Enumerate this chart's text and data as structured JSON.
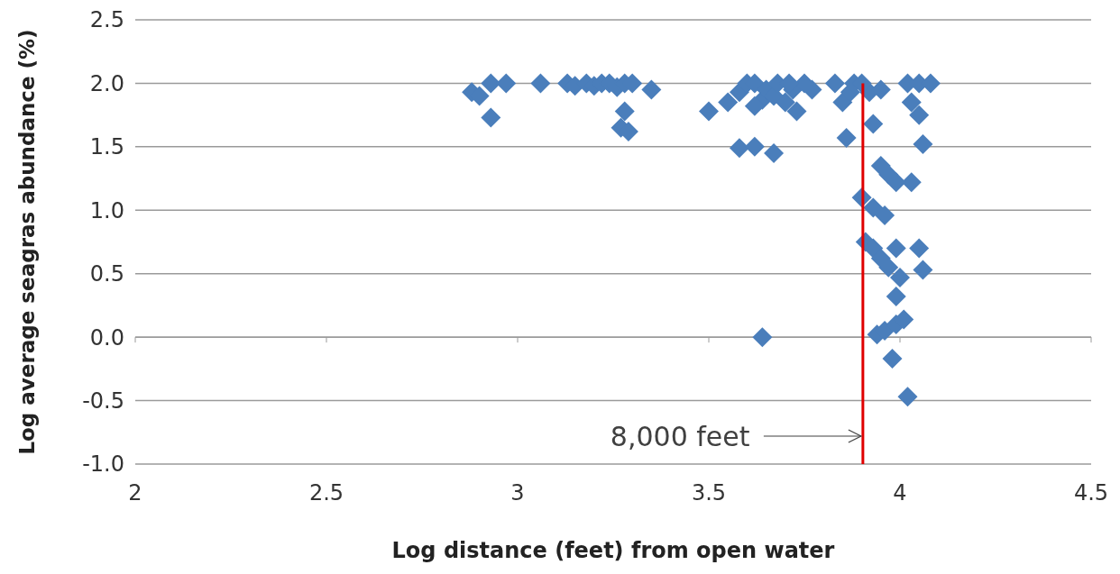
{
  "chart_data": {
    "type": "scatter",
    "xlabel": "Log distance (feet) from open water",
    "ylabel": "Log average seagras abundance (%)",
    "xlim": [
      2,
      4.5
    ],
    "xticks": [
      2,
      2.5,
      3,
      3.5,
      4,
      4.5
    ],
    "ylim": [
      -1,
      2.5
    ],
    "yticks": [
      {
        "value": -1,
        "label": "-1.0"
      },
      {
        "value": -0.5,
        "label": "-0.5"
      },
      {
        "value": 0,
        "label": "0.0"
      },
      {
        "value": 0.5,
        "label": "0.5"
      },
      {
        "value": 1,
        "label": "1.0"
      },
      {
        "value": 1.5,
        "label": "1.5"
      },
      {
        "value": 2,
        "label": "2.0"
      },
      {
        "value": 2.5,
        "label": "2.5"
      }
    ],
    "grid": "y",
    "marker": "diamond",
    "series": [
      {
        "color": "#4a7ebb",
        "x": [
          2.88,
          2.9,
          2.93,
          2.93,
          2.97,
          3.06,
          3.13,
          3.15,
          3.18,
          3.2,
          3.22,
          3.24,
          3.26,
          3.28,
          3.3,
          3.35,
          3.28,
          3.27,
          3.29,
          3.5,
          3.55,
          3.58,
          3.6,
          3.62,
          3.64,
          3.65,
          3.67,
          3.68,
          3.7,
          3.72,
          3.73,
          3.75,
          3.77,
          3.71,
          3.62,
          3.58,
          3.62,
          3.67,
          3.64,
          3.83,
          3.85,
          3.87,
          3.88,
          3.86,
          3.92,
          3.95,
          3.93,
          3.9,
          4.02,
          4.05,
          4.08,
          4.03,
          4.05,
          4.06,
          4.03,
          4.05,
          4.06,
          3.9,
          3.93,
          3.96,
          3.95,
          3.97,
          3.99,
          3.91,
          3.93,
          3.95,
          3.99,
          3.97,
          4.0,
          3.99,
          3.94,
          3.96,
          3.99,
          4.01,
          3.98,
          4.02
        ],
        "values": [
          1.93,
          1.9,
          1.73,
          2.0,
          2.0,
          2.0,
          2.0,
          1.98,
          2.0,
          1.98,
          2.0,
          2.0,
          1.97,
          2.0,
          2.0,
          1.95,
          1.78,
          1.65,
          1.62,
          1.78,
          1.85,
          1.93,
          2.0,
          2.0,
          1.87,
          1.95,
          1.9,
          2.0,
          1.85,
          1.95,
          1.78,
          2.0,
          1.95,
          2.0,
          1.82,
          1.49,
          1.5,
          1.45,
          0.0,
          2.0,
          1.85,
          1.93,
          2.0,
          1.57,
          1.93,
          1.95,
          1.68,
          2.0,
          2.0,
          2.0,
          2.0,
          1.85,
          1.75,
          1.52,
          1.22,
          0.7,
          0.53,
          1.1,
          1.02,
          0.96,
          1.35,
          1.28,
          1.22,
          0.75,
          0.7,
          0.62,
          0.7,
          0.55,
          0.47,
          0.32,
          0.02,
          0.05,
          0.1,
          0.14,
          -0.17,
          -0.47
        ]
      },
      {
        "type": "line",
        "color": "#e00000",
        "marker": "none",
        "x": [
          3.903,
          3.903
        ],
        "values": [
          -1,
          2
        ]
      }
    ],
    "annotations": [
      {
        "text": "8,000 feet",
        "x": 3.903,
        "y": -0.78
      }
    ]
  }
}
